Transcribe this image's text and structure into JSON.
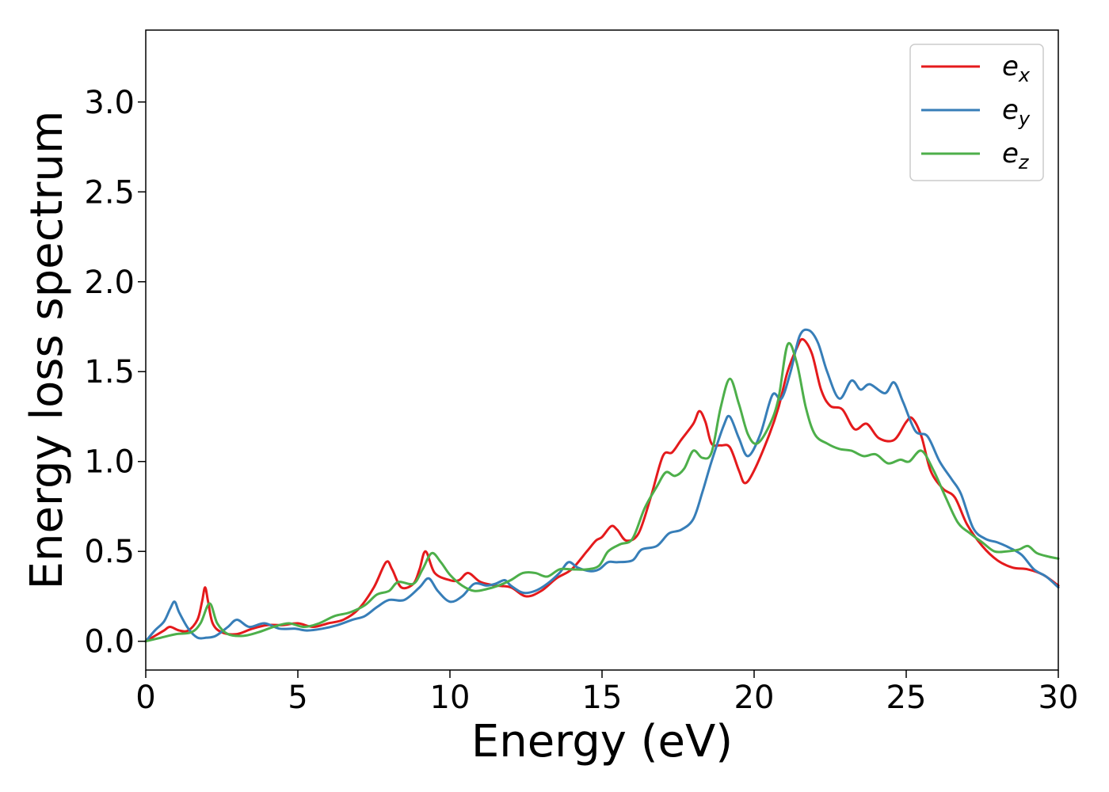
{
  "chart_data": {
    "type": "line",
    "xlabel": "Energy (eV)",
    "ylabel": "Energy loss spectrum",
    "xlim": [
      0,
      30
    ],
    "ylim": [
      -0.16,
      3.4
    ],
    "xticks": [
      0,
      5,
      10,
      15,
      20,
      25,
      30
    ],
    "xtick_labels": [
      "0",
      "5",
      "10",
      "15",
      "20",
      "25",
      "30"
    ],
    "yticks": [
      0.0,
      0.5,
      1.0,
      1.5,
      2.0,
      2.5,
      3.0
    ],
    "ytick_labels": [
      "0.0",
      "0.5",
      "1.0",
      "1.5",
      "2.0",
      "2.5",
      "3.0"
    ],
    "grid": false,
    "legend_position": "top-right",
    "series": [
      {
        "name": "e",
        "subscript": "x",
        "color": "#e41a1c",
        "points": [
          [
            0,
            0
          ],
          [
            0.3,
            0.03
          ],
          [
            0.6,
            0.06
          ],
          [
            0.8,
            0.08
          ],
          [
            1.1,
            0.06
          ],
          [
            1.4,
            0.06
          ],
          [
            1.7,
            0.12
          ],
          [
            1.85,
            0.22
          ],
          [
            1.95,
            0.3
          ],
          [
            2.05,
            0.22
          ],
          [
            2.2,
            0.1
          ],
          [
            2.5,
            0.05
          ],
          [
            3.0,
            0.04
          ],
          [
            3.5,
            0.07
          ],
          [
            4.0,
            0.09
          ],
          [
            4.5,
            0.09
          ],
          [
            5.0,
            0.1
          ],
          [
            5.5,
            0.08
          ],
          [
            6.0,
            0.1
          ],
          [
            6.5,
            0.12
          ],
          [
            7.0,
            0.18
          ],
          [
            7.5,
            0.3
          ],
          [
            7.9,
            0.44
          ],
          [
            8.1,
            0.4
          ],
          [
            8.4,
            0.3
          ],
          [
            8.8,
            0.32
          ],
          [
            9.0,
            0.4
          ],
          [
            9.2,
            0.5
          ],
          [
            9.5,
            0.38
          ],
          [
            10.0,
            0.34
          ],
          [
            10.3,
            0.34
          ],
          [
            10.6,
            0.38
          ],
          [
            11.0,
            0.33
          ],
          [
            11.5,
            0.31
          ],
          [
            12.0,
            0.3
          ],
          [
            12.5,
            0.25
          ],
          [
            13.0,
            0.28
          ],
          [
            13.5,
            0.35
          ],
          [
            14.0,
            0.4
          ],
          [
            14.5,
            0.5
          ],
          [
            14.8,
            0.56
          ],
          [
            15.0,
            0.58
          ],
          [
            15.3,
            0.64
          ],
          [
            15.5,
            0.62
          ],
          [
            15.8,
            0.56
          ],
          [
            16.2,
            0.6
          ],
          [
            16.6,
            0.8
          ],
          [
            17.0,
            1.03
          ],
          [
            17.3,
            1.05
          ],
          [
            17.6,
            1.12
          ],
          [
            18.0,
            1.21
          ],
          [
            18.2,
            1.28
          ],
          [
            18.4,
            1.22
          ],
          [
            18.6,
            1.1
          ],
          [
            18.9,
            1.09
          ],
          [
            19.2,
            1.08
          ],
          [
            19.5,
            0.95
          ],
          [
            19.7,
            0.88
          ],
          [
            20.0,
            0.95
          ],
          [
            20.5,
            1.15
          ],
          [
            20.8,
            1.3
          ],
          [
            21.1,
            1.5
          ],
          [
            21.4,
            1.63
          ],
          [
            21.6,
            1.68
          ],
          [
            21.9,
            1.6
          ],
          [
            22.2,
            1.4
          ],
          [
            22.5,
            1.31
          ],
          [
            22.9,
            1.29
          ],
          [
            23.3,
            1.18
          ],
          [
            23.7,
            1.21
          ],
          [
            24.1,
            1.13
          ],
          [
            24.6,
            1.12
          ],
          [
            25.0,
            1.22
          ],
          [
            25.2,
            1.24
          ],
          [
            25.5,
            1.14
          ],
          [
            25.8,
            0.95
          ],
          [
            26.2,
            0.85
          ],
          [
            26.6,
            0.8
          ],
          [
            27.0,
            0.65
          ],
          [
            27.5,
            0.53
          ],
          [
            28.0,
            0.45
          ],
          [
            28.5,
            0.41
          ],
          [
            29.0,
            0.4
          ],
          [
            29.5,
            0.37
          ],
          [
            30.0,
            0.31
          ]
        ]
      },
      {
        "name": "e",
        "subscript": "y",
        "color": "#377eb8",
        "points": [
          [
            0,
            0
          ],
          [
            0.3,
            0.06
          ],
          [
            0.6,
            0.11
          ],
          [
            0.8,
            0.18
          ],
          [
            0.95,
            0.22
          ],
          [
            1.1,
            0.16
          ],
          [
            1.4,
            0.07
          ],
          [
            1.7,
            0.02
          ],
          [
            2.0,
            0.02
          ],
          [
            2.3,
            0.03
          ],
          [
            2.7,
            0.08
          ],
          [
            3.0,
            0.12
          ],
          [
            3.4,
            0.08
          ],
          [
            3.9,
            0.1
          ],
          [
            4.4,
            0.07
          ],
          [
            4.9,
            0.07
          ],
          [
            5.3,
            0.06
          ],
          [
            5.8,
            0.07
          ],
          [
            6.3,
            0.09
          ],
          [
            6.8,
            0.12
          ],
          [
            7.2,
            0.14
          ],
          [
            7.6,
            0.19
          ],
          [
            8.0,
            0.23
          ],
          [
            8.5,
            0.23
          ],
          [
            9.0,
            0.3
          ],
          [
            9.3,
            0.35
          ],
          [
            9.6,
            0.28
          ],
          [
            10.0,
            0.22
          ],
          [
            10.4,
            0.25
          ],
          [
            10.8,
            0.32
          ],
          [
            11.2,
            0.31
          ],
          [
            11.5,
            0.32
          ],
          [
            11.8,
            0.34
          ],
          [
            12.0,
            0.31
          ],
          [
            12.4,
            0.27
          ],
          [
            12.8,
            0.28
          ],
          [
            13.2,
            0.32
          ],
          [
            13.6,
            0.38
          ],
          [
            13.9,
            0.44
          ],
          [
            14.2,
            0.41
          ],
          [
            14.6,
            0.39
          ],
          [
            14.9,
            0.4
          ],
          [
            15.2,
            0.44
          ],
          [
            15.5,
            0.44
          ],
          [
            16.0,
            0.45
          ],
          [
            16.3,
            0.51
          ],
          [
            16.8,
            0.53
          ],
          [
            17.2,
            0.6
          ],
          [
            17.6,
            0.62
          ],
          [
            18.0,
            0.68
          ],
          [
            18.3,
            0.83
          ],
          [
            18.6,
            1.0
          ],
          [
            19.0,
            1.2
          ],
          [
            19.2,
            1.25
          ],
          [
            19.5,
            1.13
          ],
          [
            19.8,
            1.03
          ],
          [
            20.2,
            1.15
          ],
          [
            20.6,
            1.37
          ],
          [
            20.9,
            1.35
          ],
          [
            21.2,
            1.5
          ],
          [
            21.5,
            1.7
          ],
          [
            21.8,
            1.73
          ],
          [
            22.1,
            1.66
          ],
          [
            22.4,
            1.5
          ],
          [
            22.8,
            1.35
          ],
          [
            23.2,
            1.45
          ],
          [
            23.5,
            1.4
          ],
          [
            23.8,
            1.43
          ],
          [
            24.3,
            1.38
          ],
          [
            24.6,
            1.44
          ],
          [
            24.9,
            1.33
          ],
          [
            25.3,
            1.17
          ],
          [
            25.7,
            1.14
          ],
          [
            26.1,
            1.0
          ],
          [
            26.5,
            0.9
          ],
          [
            26.8,
            0.82
          ],
          [
            27.2,
            0.63
          ],
          [
            27.6,
            0.57
          ],
          [
            28.0,
            0.55
          ],
          [
            28.4,
            0.52
          ],
          [
            28.8,
            0.48
          ],
          [
            29.2,
            0.4
          ],
          [
            29.6,
            0.36
          ],
          [
            30.0,
            0.3
          ]
        ]
      },
      {
        "name": "e",
        "subscript": "z",
        "color": "#4daf4a",
        "points": [
          [
            0,
            0
          ],
          [
            0.5,
            0.02
          ],
          [
            1.0,
            0.04
          ],
          [
            1.5,
            0.05
          ],
          [
            1.8,
            0.1
          ],
          [
            2.1,
            0.21
          ],
          [
            2.35,
            0.1
          ],
          [
            2.7,
            0.04
          ],
          [
            3.2,
            0.03
          ],
          [
            3.7,
            0.05
          ],
          [
            4.2,
            0.08
          ],
          [
            4.7,
            0.1
          ],
          [
            5.2,
            0.08
          ],
          [
            5.7,
            0.1
          ],
          [
            6.2,
            0.14
          ],
          [
            6.7,
            0.16
          ],
          [
            7.2,
            0.2
          ],
          [
            7.6,
            0.26
          ],
          [
            8.0,
            0.28
          ],
          [
            8.3,
            0.33
          ],
          [
            8.8,
            0.32
          ],
          [
            9.1,
            0.4
          ],
          [
            9.4,
            0.49
          ],
          [
            9.7,
            0.44
          ],
          [
            10.0,
            0.37
          ],
          [
            10.4,
            0.31
          ],
          [
            10.8,
            0.28
          ],
          [
            11.2,
            0.29
          ],
          [
            11.6,
            0.31
          ],
          [
            12.0,
            0.34
          ],
          [
            12.4,
            0.38
          ],
          [
            12.8,
            0.38
          ],
          [
            13.2,
            0.36
          ],
          [
            13.6,
            0.4
          ],
          [
            14.0,
            0.4
          ],
          [
            14.5,
            0.4
          ],
          [
            14.9,
            0.42
          ],
          [
            15.2,
            0.5
          ],
          [
            15.6,
            0.54
          ],
          [
            16.0,
            0.57
          ],
          [
            16.4,
            0.74
          ],
          [
            16.8,
            0.86
          ],
          [
            17.1,
            0.94
          ],
          [
            17.4,
            0.92
          ],
          [
            17.7,
            0.96
          ],
          [
            18.0,
            1.06
          ],
          [
            18.3,
            1.02
          ],
          [
            18.6,
            1.05
          ],
          [
            18.9,
            1.3
          ],
          [
            19.2,
            1.46
          ],
          [
            19.5,
            1.32
          ],
          [
            19.8,
            1.15
          ],
          [
            20.1,
            1.1
          ],
          [
            20.5,
            1.2
          ],
          [
            20.8,
            1.35
          ],
          [
            21.1,
            1.65
          ],
          [
            21.4,
            1.55
          ],
          [
            21.7,
            1.3
          ],
          [
            22.0,
            1.15
          ],
          [
            22.4,
            1.1
          ],
          [
            22.8,
            1.07
          ],
          [
            23.2,
            1.06
          ],
          [
            23.6,
            1.03
          ],
          [
            24.0,
            1.04
          ],
          [
            24.4,
            0.99
          ],
          [
            24.8,
            1.01
          ],
          [
            25.1,
            1.0
          ],
          [
            25.5,
            1.06
          ],
          [
            25.9,
            0.95
          ],
          [
            26.3,
            0.8
          ],
          [
            26.7,
            0.66
          ],
          [
            27.1,
            0.6
          ],
          [
            27.5,
            0.55
          ],
          [
            27.9,
            0.5
          ],
          [
            28.3,
            0.5
          ],
          [
            28.7,
            0.51
          ],
          [
            29.0,
            0.53
          ],
          [
            29.3,
            0.49
          ],
          [
            29.7,
            0.47
          ],
          [
            30.0,
            0.46
          ]
        ]
      }
    ]
  }
}
